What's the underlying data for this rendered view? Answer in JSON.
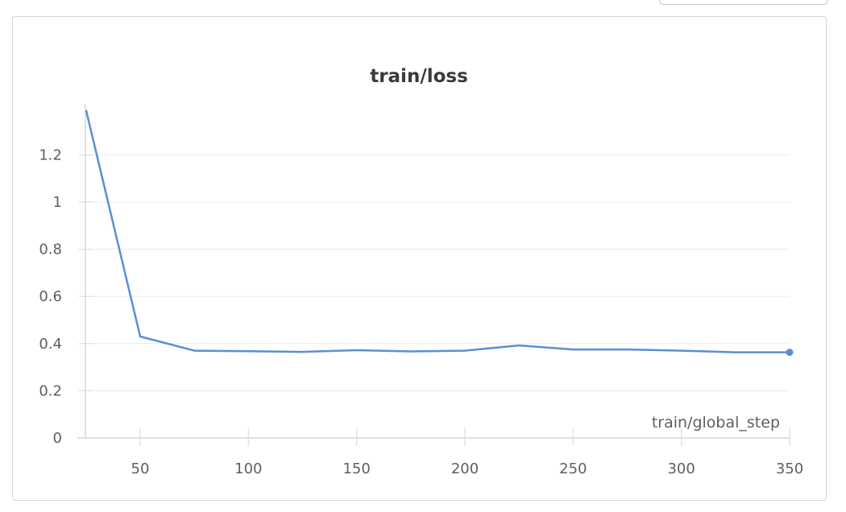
{
  "chart_data": {
    "type": "line",
    "title": "train/loss",
    "xlabel": "train/global_step",
    "ylabel": "",
    "xlim": [
      25,
      350
    ],
    "ylim": [
      0,
      1.4
    ],
    "x_ticks": [
      "50",
      "100",
      "150",
      "200",
      "250",
      "300",
      "350"
    ],
    "y_ticks": [
      "0",
      "0.2",
      "0.4",
      "0.6",
      "0.8",
      "1",
      "1.2"
    ],
    "grid": true,
    "legend": "none",
    "color": "#5a8fd4",
    "series": [
      {
        "x": [
          25,
          50,
          75,
          100,
          125,
          150,
          175,
          200,
          225,
          250,
          275,
          300,
          325,
          350
        ],
        "values": [
          1.39,
          0.43,
          0.37,
          0.368,
          0.365,
          0.372,
          0.367,
          0.37,
          0.392,
          0.375,
          0.375,
          0.37,
          0.363,
          0.363
        ]
      }
    ]
  }
}
